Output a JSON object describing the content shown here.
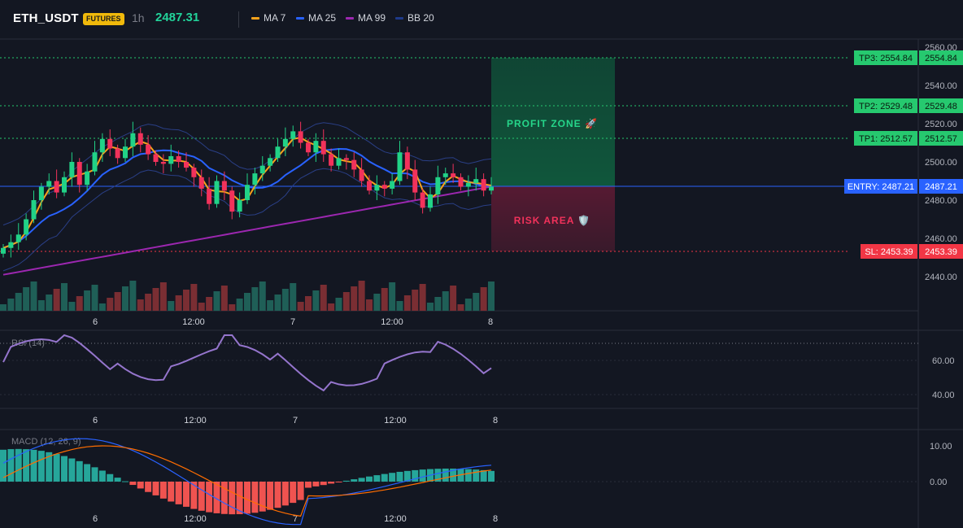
{
  "header": {
    "symbol": "ETH_USDT",
    "badge": "FUTURES",
    "timeframe": "1h",
    "price": "2487.31",
    "legend": [
      {
        "label": "MA 7",
        "color": "#f7a21b"
      },
      {
        "label": "MA 25",
        "color": "#2962ff"
      },
      {
        "label": "MA 99",
        "color": "#9c27b0"
      },
      {
        "label": "BB 20",
        "color": "#1e3a8a"
      }
    ]
  },
  "colors": {
    "up": "#26a69a",
    "down": "#ef5350",
    "bull_candle": "#21d287",
    "bear_candle": "#f2325b",
    "tp": "#26c96f",
    "entry": "#2962ff",
    "sl": "#f23645",
    "rsi": "#9575cd",
    "macd_line": "#2962ff",
    "signal_line": "#ff6d00"
  },
  "price_axis": {
    "ticks": [
      "2560.00",
      "2540.00",
      "2520.00",
      "2500.00",
      "2480.00",
      "2460.00",
      "2440.00"
    ]
  },
  "time_axis": {
    "ticks": [
      "6",
      "12:00",
      "7",
      "12:00",
      "8"
    ]
  },
  "levels": {
    "tp3": {
      "tag": "TP3: 2554.84",
      "value": "2554.84"
    },
    "tp2": {
      "tag": "TP2: 2529.48",
      "value": "2529.48"
    },
    "tp1": {
      "tag": "TP1: 2512.57",
      "value": "2512.57"
    },
    "entry": {
      "tag": "ENTRY: 2487.21",
      "value": "2487.21"
    },
    "sl": {
      "tag": "SL: 2453.39",
      "value": "2453.39"
    }
  },
  "zones": {
    "profit": "PROFIT ZONE 🚀",
    "risk": "RISK AREA 🛡️"
  },
  "rsi": {
    "label": "RSI (14)",
    "ticks": [
      "60.00",
      "40.00"
    ]
  },
  "macd": {
    "label": "MACD (12, 26, 9)",
    "ticks": [
      "10.00",
      "0.00"
    ]
  }
}
